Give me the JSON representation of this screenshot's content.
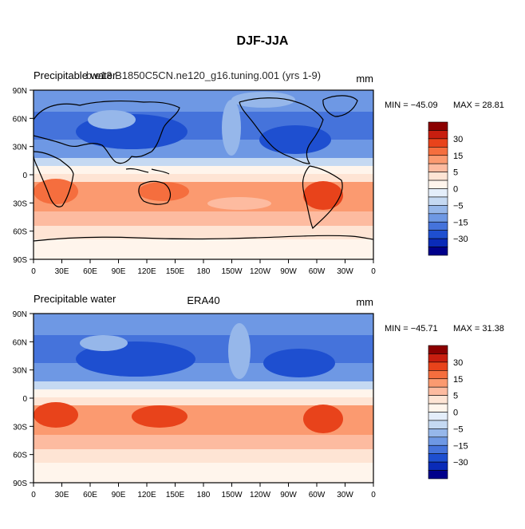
{
  "figure": {
    "title": "DJF-JJA"
  },
  "panels": [
    {
      "id": "model",
      "left_label": "Precipitable water",
      "center_label": "b.e13.B1850C5CN.ne120_g16.tuning.001 (yrs 1-9)",
      "units": "mm",
      "min_label": "MIN = −45.09",
      "max_label": "MAX =   28.81"
    },
    {
      "id": "obs",
      "left_label": "Precipitable water",
      "center_label": "ERA40",
      "units": "mm",
      "min_label": "MIN = −45.71",
      "max_label": "MAX =  31.38"
    }
  ],
  "axes": {
    "x_ticks": [
      "0",
      "30E",
      "60E",
      "90E",
      "120E",
      "150E",
      "180",
      "150W",
      "120W",
      "90W",
      "60W",
      "30W",
      "0"
    ],
    "y_ticks": [
      "90N",
      "60N",
      "30N",
      "0",
      "30S",
      "60S",
      "90S"
    ]
  },
  "colorbar": {
    "labels": [
      "30",
      "15",
      "5",
      "0",
      "−5",
      "−15",
      "−30"
    ],
    "colors": [
      "#8B0000",
      "#C81E0F",
      "#E8431B",
      "#F56E3E",
      "#FB9A70",
      "#FDBBA0",
      "#FEE4D4",
      "#FFF5EC",
      "#E4EEFA",
      "#C5D9F2",
      "#96B7EA",
      "#6E98E4",
      "#4573DB",
      "#1E4FD0",
      "#0A2BB8",
      "#00008B"
    ]
  },
  "colors": {
    "coastline": "#000000",
    "ocean_neutral": "#FFF5EC"
  }
}
